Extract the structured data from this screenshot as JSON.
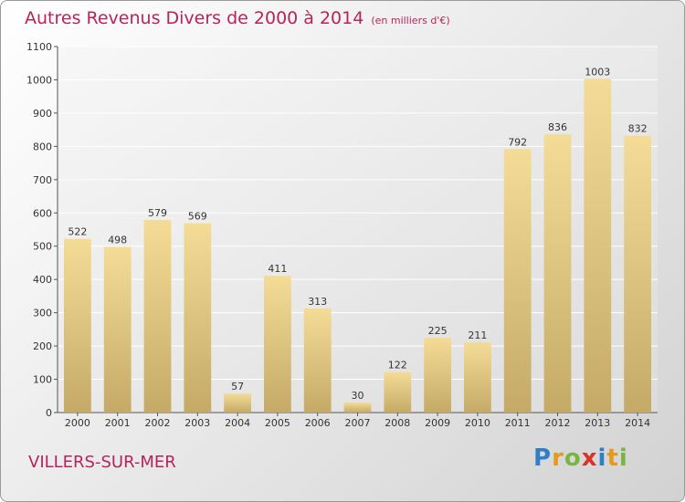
{
  "chart_data": {
    "type": "bar",
    "title": "Autres Revenus Divers de 2000 à 2014",
    "subtitle": "(en milliers d'€)",
    "categories": [
      "2000",
      "2001",
      "2002",
      "2003",
      "2004",
      "2005",
      "2006",
      "2007",
      "2008",
      "2009",
      "2010",
      "2011",
      "2012",
      "2013",
      "2014"
    ],
    "values": [
      522,
      498,
      579,
      569,
      57,
      411,
      313,
      30,
      122,
      225,
      211,
      792,
      836,
      1003,
      832
    ],
    "ylim": [
      0,
      1100
    ],
    "yticks": [
      0,
      100,
      200,
      300,
      400,
      500,
      600,
      700,
      800,
      900,
      1000,
      1100
    ],
    "grid": true,
    "bar_color": "#e9cf86"
  },
  "footer": {
    "place": "VILLERS-SUR-MER",
    "logo_letters": [
      {
        "ch": "P",
        "color": "#2e7fc7"
      },
      {
        "ch": "r",
        "color": "#e39a1f"
      },
      {
        "ch": "o",
        "color": "#7ab542"
      },
      {
        "ch": "x",
        "color": "#d8342b"
      },
      {
        "ch": "i",
        "color": "#2e7fc7"
      },
      {
        "ch": "t",
        "color": "#e39a1f"
      },
      {
        "ch": "i",
        "color": "#7ab542"
      }
    ]
  }
}
